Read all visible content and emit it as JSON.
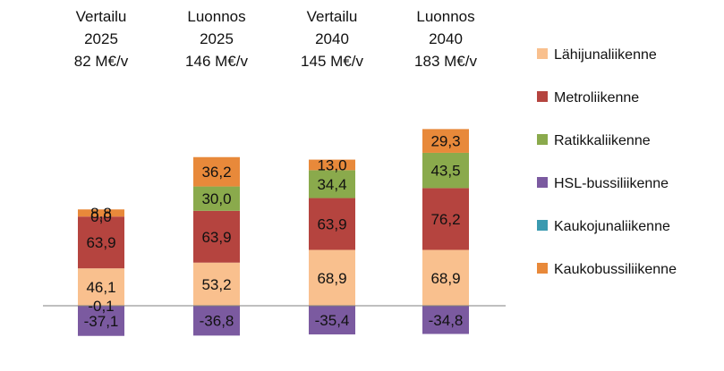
{
  "chart_data": {
    "type": "bar",
    "stacked": true,
    "categories": [
      {
        "line1": "Vertailu",
        "line2": "2025",
        "line3": "82 M€/v"
      },
      {
        "line1": "Luonnos",
        "line2": "2025",
        "line3": "146 M€/v"
      },
      {
        "line1": "Vertailu",
        "line2": "2040",
        "line3": "145 M€/v"
      },
      {
        "line1": "Luonnos",
        "line2": "2040",
        "line3": "183 M€/v"
      }
    ],
    "series": [
      {
        "name": "Lähijunaliikenne",
        "color": "#f9c08e",
        "values": [
          46.1,
          53.2,
          68.9,
          68.9
        ],
        "labels": [
          "46,1",
          "53,2",
          "68,9",
          "68,9"
        ]
      },
      {
        "name": "Metroliikenne",
        "color": "#b5443f",
        "values": [
          63.9,
          63.9,
          63.9,
          76.2
        ],
        "labels": [
          "63,9",
          "63,9",
          "63,9",
          "76,2"
        ]
      },
      {
        "name": "Ratikkaliikenne",
        "color": "#8aaa4c",
        "values": [
          0.0,
          30.0,
          34.4,
          43.5
        ],
        "labels": [
          "0,0",
          "30,0",
          "34,4",
          "43,5"
        ]
      },
      {
        "name": "HSL-bussiliikenne",
        "color": "#7b5aa0",
        "values": [
          -37.1,
          -36.8,
          -35.4,
          -34.8
        ],
        "labels": [
          "-37,1",
          "-36,8",
          "-35,4",
          "-34,8"
        ]
      },
      {
        "name": "Kaukojunaliikenne",
        "color": "#3a9ab0",
        "values": [
          -0.1,
          0.0,
          0.0,
          0.0
        ],
        "labels": [
          "-0,1",
          "",
          "",
          ""
        ]
      },
      {
        "name": "Kaukobussiliikenne",
        "color": "#e8893a",
        "values": [
          8.8,
          36.2,
          13.0,
          29.3
        ],
        "labels": [
          "8,8",
          "36,2",
          "13,0",
          "29,3"
        ]
      }
    ],
    "legend_position": "right",
    "grid": false
  }
}
